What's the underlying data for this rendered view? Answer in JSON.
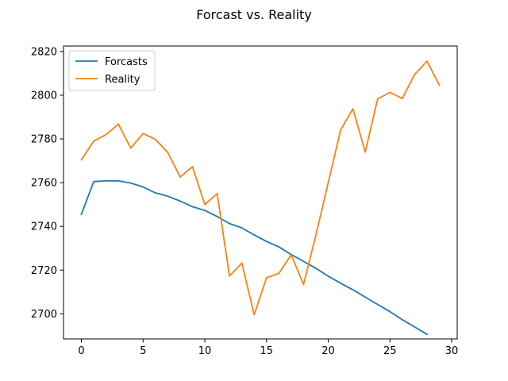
{
  "chart_data": {
    "type": "line",
    "title": "Forcast vs. Reality",
    "xlabel": "",
    "ylabel": "",
    "xlim": [
      -1.45,
      30.45
    ],
    "ylim": [
      2688.5,
      2822.5
    ],
    "xticks": [
      0,
      5,
      10,
      15,
      20,
      25,
      30
    ],
    "yticks": [
      2700,
      2720,
      2740,
      2760,
      2780,
      2800,
      2820
    ],
    "grid": false,
    "legend": "top-left",
    "series": [
      {
        "name": "Forcasts",
        "color": "#1f77b4",
        "x": [
          0,
          1,
          2,
          3,
          4,
          5,
          6,
          7,
          8,
          9,
          10,
          11,
          12,
          13,
          14,
          15,
          16,
          17,
          18,
          19,
          20,
          21,
          22,
          23,
          24,
          25,
          26,
          27,
          28
        ],
        "values": [
          2745.5,
          2760.5,
          2760.8,
          2760.8,
          2759.8,
          2758.0,
          2755.3,
          2753.8,
          2751.6,
          2749.0,
          2747.3,
          2744.5,
          2741.3,
          2739.3,
          2736.1,
          2733.1,
          2730.6,
          2727.1,
          2724.0,
          2720.8,
          2717.2,
          2714.0,
          2711.0,
          2707.6,
          2704.3,
          2701.0,
          2697.3,
          2694.0,
          2690.6
        ]
      },
      {
        "name": "Reality",
        "color": "#ff7f0e",
        "x": [
          0,
          1,
          2,
          3,
          4,
          5,
          6,
          7,
          8,
          9,
          10,
          11,
          12,
          13,
          14,
          15,
          16,
          17,
          18,
          19,
          20,
          21,
          22,
          23,
          24,
          25,
          26,
          27,
          28,
          29
        ],
        "values": [
          2770.5,
          2779.0,
          2782.0,
          2786.8,
          2775.8,
          2782.5,
          2779.8,
          2773.8,
          2762.6,
          2767.3,
          2750.0,
          2755.0,
          2717.3,
          2723.2,
          2699.6,
          2716.5,
          2718.5,
          2727.0,
          2713.4,
          2736.0,
          2760.0,
          2784.0,
          2793.8,
          2774.0,
          2798.3,
          2801.3,
          2798.5,
          2809.5,
          2815.6,
          2804.6
        ]
      }
    ]
  }
}
